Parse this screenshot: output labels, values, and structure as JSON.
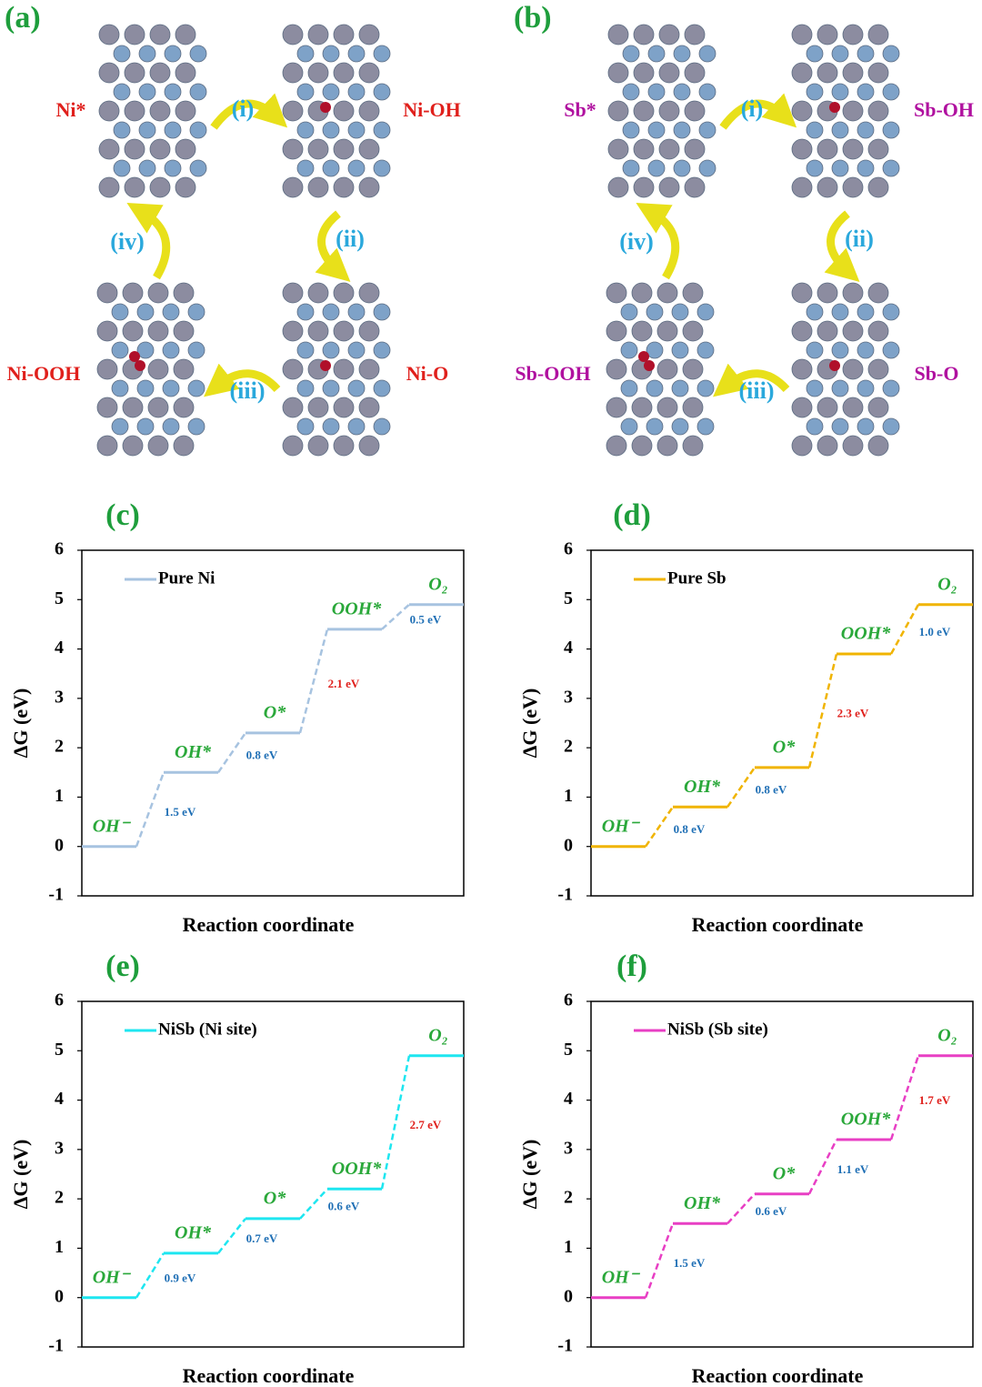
{
  "panels": [
    {
      "label": "(a)",
      "states": [
        "Ni*",
        "Ni-OH",
        "Ni-O",
        "Ni-OOH"
      ],
      "steps": [
        "(i)",
        "(ii)",
        "(iii)",
        "(iv)"
      ]
    },
    {
      "label": "(b)",
      "states": [
        "Sb*",
        "Sb-OH",
        "Sb-O",
        "Sb-OOH"
      ],
      "steps": [
        "(i)",
        "(ii)",
        "(iii)",
        "(iv)"
      ]
    }
  ],
  "chart_data": [
    {
      "type": "step",
      "panel": "(c)",
      "categories": [
        "OH⁻",
        "OH*",
        "O*",
        "OOH*",
        "O₂"
      ],
      "series": [
        {
          "name": "Pure Ni",
          "color": "#a7c3e0",
          "values": [
            0,
            1.5,
            2.3,
            4.4,
            4.9
          ]
        }
      ],
      "step_labels": [
        "1.5 eV",
        "0.8 eV",
        "2.1 eV",
        "0.5 eV"
      ],
      "step_label_colors": [
        "#1f6fb5",
        "#1f6fb5",
        "#e0201c",
        "#1f6fb5"
      ],
      "ylim": [
        -1,
        6
      ],
      "yticks": [
        -1,
        0,
        1,
        2,
        3,
        4,
        5,
        6
      ],
      "ylabel": "ΔG (eV)",
      "xlabel": "Reaction coordinate",
      "legend": "upper left"
    },
    {
      "type": "step",
      "panel": "(d)",
      "categories": [
        "OH⁻",
        "OH*",
        "O*",
        "OOH*",
        "O₂"
      ],
      "series": [
        {
          "name": "Pure Sb",
          "color": "#f0b400",
          "values": [
            0,
            0.8,
            1.6,
            3.9,
            4.9
          ]
        }
      ],
      "step_labels": [
        "0.8 eV",
        "0.8 eV",
        "2.3 eV",
        "1.0 eV"
      ],
      "step_label_colors": [
        "#1f6fb5",
        "#1f6fb5",
        "#e0201c",
        "#1f6fb5"
      ],
      "ylim": [
        -1,
        6
      ],
      "yticks": [
        -1,
        0,
        1,
        2,
        3,
        4,
        5,
        6
      ],
      "ylabel": "ΔG (eV)",
      "xlabel": "Reaction coordinate",
      "legend": "upper left"
    },
    {
      "type": "step",
      "panel": "(e)",
      "categories": [
        "OH⁻",
        "OH*",
        "O*",
        "OOH*",
        "O₂"
      ],
      "series": [
        {
          "name": "NiSb (Ni site)",
          "color": "#1ee6f0",
          "values": [
            0,
            0.9,
            1.6,
            2.2,
            4.9
          ]
        }
      ],
      "step_labels": [
        "0.9 eV",
        "0.7 eV",
        "0.6 eV",
        "2.7 eV"
      ],
      "step_label_colors": [
        "#1f6fb5",
        "#1f6fb5",
        "#1f6fb5",
        "#e0201c"
      ],
      "ylim": [
        -1,
        6
      ],
      "yticks": [
        -1,
        0,
        1,
        2,
        3,
        4,
        5,
        6
      ],
      "ylabel": "ΔG (eV)",
      "xlabel": "Reaction coordinate",
      "legend": "upper left"
    },
    {
      "type": "step",
      "panel": "(f)",
      "categories": [
        "OH⁻",
        "OH*",
        "O*",
        "OOH*",
        "O₂"
      ],
      "series": [
        {
          "name": "NiSb (Sb site)",
          "color": "#e83fc4",
          "values": [
            0,
            1.5,
            2.1,
            3.2,
            4.9
          ]
        }
      ],
      "step_labels": [
        "1.5 eV",
        "0.6 eV",
        "1.1 eV",
        "1.7 eV"
      ],
      "step_label_colors": [
        "#1f6fb5",
        "#1f6fb5",
        "#1f6fb5",
        "#e0201c"
      ],
      "ylim": [
        -1,
        6
      ],
      "yticks": [
        -1,
        0,
        1,
        2,
        3,
        4,
        5,
        6
      ],
      "ylabel": "ΔG (eV)",
      "xlabel": "Reaction coordinate",
      "legend": "upper left"
    }
  ]
}
